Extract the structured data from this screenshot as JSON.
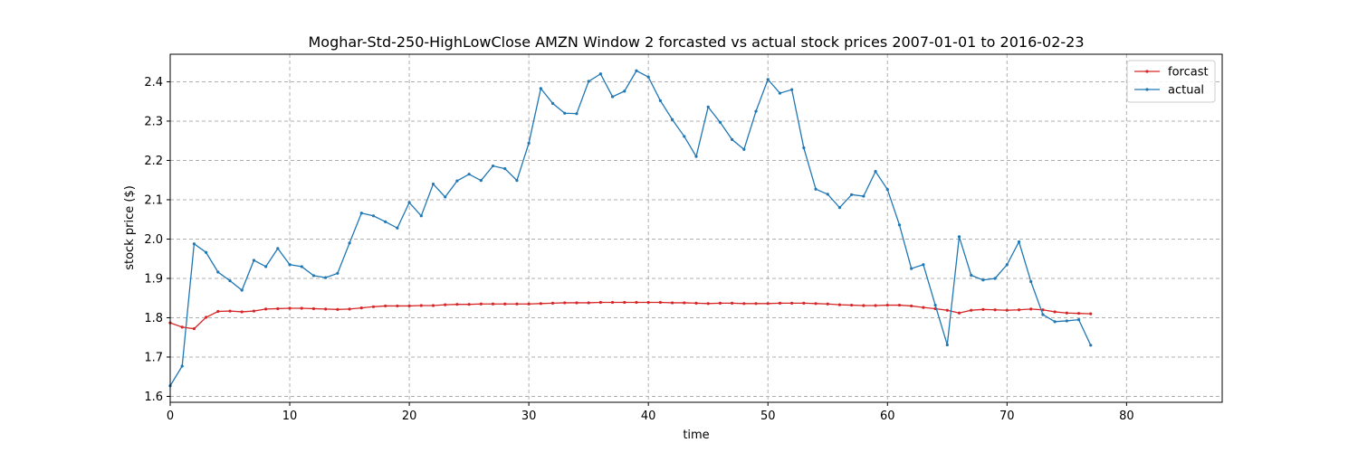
{
  "chart_data": {
    "type": "line",
    "title": "Moghar-Std-250-HighLowClose AMZN Window 2 forcasted vs actual stock prices 2007-01-01 to 2016-02-23",
    "xlabel": "time",
    "ylabel": "stock price ($)",
    "xlim": [
      0,
      88
    ],
    "ylim": [
      1.585,
      2.47
    ],
    "xticks": [
      0,
      10,
      20,
      30,
      40,
      50,
      60,
      70,
      80
    ],
    "yticks": [
      1.6,
      1.7,
      1.8,
      1.9,
      2.0,
      2.1,
      2.2,
      2.3,
      2.4
    ],
    "grid": true,
    "legend_position": "top-right",
    "series": [
      {
        "name": "forcast",
        "color": "#d62728",
        "values": [
          1.787,
          1.776,
          1.772,
          1.801,
          1.816,
          1.817,
          1.815,
          1.817,
          1.822,
          1.823,
          1.824,
          1.824,
          1.823,
          1.822,
          1.821,
          1.822,
          1.825,
          1.828,
          1.83,
          1.83,
          1.83,
          1.831,
          1.831,
          1.833,
          1.834,
          1.834,
          1.835,
          1.835,
          1.835,
          1.835,
          1.835,
          1.836,
          1.837,
          1.838,
          1.838,
          1.838,
          1.839,
          1.839,
          1.839,
          1.839,
          1.839,
          1.839,
          1.838,
          1.838,
          1.837,
          1.836,
          1.837,
          1.837,
          1.836,
          1.836,
          1.836,
          1.837,
          1.837,
          1.837,
          1.836,
          1.835,
          1.833,
          1.832,
          1.831,
          1.831,
          1.832,
          1.832,
          1.83,
          1.826,
          1.823,
          1.819,
          1.812,
          1.819,
          1.821,
          1.82,
          1.819,
          1.82,
          1.822,
          1.82,
          1.815,
          1.812,
          1.811,
          1.81
        ]
      },
      {
        "name": "actual",
        "color": "#1f77b4",
        "values": [
          1.627,
          1.677,
          1.988,
          1.966,
          1.916,
          1.894,
          1.87,
          1.946,
          1.93,
          1.976,
          1.935,
          1.93,
          1.907,
          1.902,
          1.913,
          1.99,
          2.066,
          2.059,
          2.044,
          2.028,
          2.093,
          2.059,
          2.14,
          2.107,
          2.148,
          2.165,
          2.149,
          2.186,
          2.179,
          2.149,
          2.244,
          2.383,
          2.345,
          2.32,
          2.319,
          2.401,
          2.42,
          2.362,
          2.376,
          2.428,
          2.412,
          2.352,
          2.304,
          2.261,
          2.21,
          2.336,
          2.297,
          2.253,
          2.228,
          2.325,
          2.406,
          2.371,
          2.38,
          2.232,
          2.127,
          2.114,
          2.08,
          2.113,
          2.109,
          2.172,
          2.126,
          2.036,
          1.925,
          1.935,
          1.832,
          1.731,
          2.006,
          1.908,
          1.896,
          1.9,
          1.935,
          1.993,
          1.892,
          1.808,
          1.79,
          1.792,
          1.795,
          1.73
        ]
      }
    ]
  }
}
